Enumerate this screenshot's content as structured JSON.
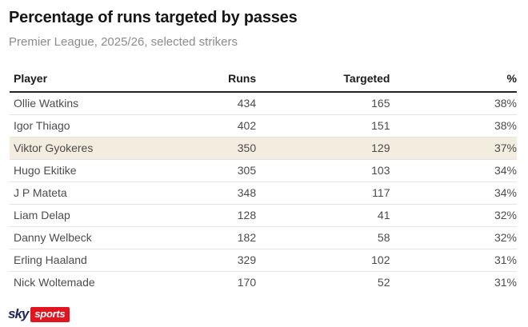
{
  "header": {
    "title": "Percentage of runs targeted by passes",
    "subtitle": "Premier League, 2025/26, selected strikers"
  },
  "chart_data": {
    "type": "table",
    "title": "Percentage of runs targeted by passes",
    "subtitle": "Premier League, 2025/26, selected strikers",
    "columns": [
      "Player",
      "Runs",
      "Targeted",
      "%"
    ],
    "rows": [
      [
        "Ollie Watkins",
        434,
        165,
        "38%"
      ],
      [
        "Igor Thiago",
        402,
        151,
        "38%"
      ],
      [
        "Viktor Gyokeres",
        350,
        129,
        "37%"
      ],
      [
        "Hugo Ekitike",
        305,
        103,
        "34%"
      ],
      [
        "J P Mateta",
        348,
        117,
        "34%"
      ],
      [
        "Liam Delap",
        128,
        41,
        "32%"
      ],
      [
        "Danny Welbeck",
        182,
        58,
        "32%"
      ],
      [
        "Erling Haaland",
        329,
        102,
        "31%"
      ],
      [
        "Nick Woltemade",
        170,
        52,
        "31%"
      ]
    ],
    "highlighted_row_index": 2,
    "highlighted_player": "Viktor Gyokeres"
  },
  "footer": {
    "brand_sky": "sky",
    "brand_sports": "sports"
  },
  "colors": {
    "highlight_bg": "#f2edde",
    "header_rule": "#232323",
    "row_rule": "#e4e4e4",
    "sky_navy": "#23265c",
    "sports_red": "#e11420"
  }
}
